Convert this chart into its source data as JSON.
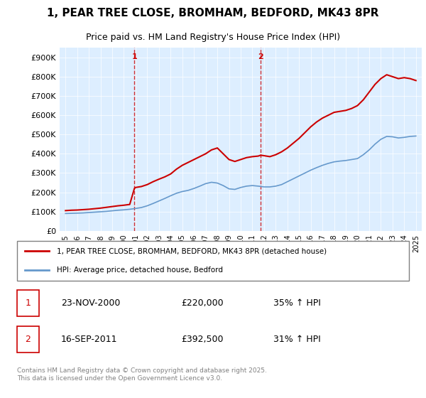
{
  "title": "1, PEAR TREE CLOSE, BROMHAM, BEDFORD, MK43 8PR",
  "subtitle": "Price paid vs. HM Land Registry's House Price Index (HPI)",
  "ylabel_ticks": [
    "£0",
    "£100K",
    "£200K",
    "£300K",
    "£400K",
    "£500K",
    "£600K",
    "£700K",
    "£800K",
    "£900K"
  ],
  "ylim": [
    0,
    950000
  ],
  "ytick_values": [
    0,
    100000,
    200000,
    300000,
    400000,
    500000,
    600000,
    700000,
    800000,
    900000
  ],
  "transaction1": {
    "date_num": 2000.9,
    "price": 220000,
    "label": "1",
    "date_str": "23-NOV-2000",
    "pct": "35% ↑ HPI"
  },
  "transaction2": {
    "date_num": 2011.71,
    "price": 392500,
    "label": "2",
    "date_str": "16-SEP-2011",
    "pct": "31% ↑ HPI"
  },
  "xlim": [
    1994.5,
    2025.5
  ],
  "xtick_years": [
    1995,
    1996,
    1997,
    1998,
    1999,
    2000,
    2001,
    2002,
    2003,
    2004,
    2005,
    2006,
    2007,
    2008,
    2009,
    2010,
    2011,
    2012,
    2013,
    2014,
    2015,
    2016,
    2017,
    2018,
    2019,
    2020,
    2021,
    2022,
    2023,
    2024,
    2025
  ],
  "property_color": "#cc0000",
  "hpi_color": "#6699cc",
  "vline_color": "#cc0000",
  "plot_bg": "#ddeeff",
  "legend_line1": "1, PEAR TREE CLOSE, BROMHAM, BEDFORD, MK43 8PR (detached house)",
  "legend_line2": "HPI: Average price, detached house, Bedford",
  "footer": "Contains HM Land Registry data © Crown copyright and database right 2025.\nThis data is licensed under the Open Government Licence v3.0.",
  "property_data": [
    [
      1995.0,
      105000
    ],
    [
      1995.5,
      107000
    ],
    [
      1996.0,
      108000
    ],
    [
      1996.5,
      110000
    ],
    [
      1997.0,
      112000
    ],
    [
      1997.5,
      115000
    ],
    [
      1998.0,
      118000
    ],
    [
      1998.5,
      122000
    ],
    [
      1999.0,
      126000
    ],
    [
      1999.5,
      130000
    ],
    [
      2000.0,
      133000
    ],
    [
      2000.5,
      137000
    ],
    [
      2000.9,
      220000
    ],
    [
      2001.0,
      225000
    ],
    [
      2001.5,
      230000
    ],
    [
      2002.0,
      240000
    ],
    [
      2002.5,
      255000
    ],
    [
      2003.0,
      268000
    ],
    [
      2003.5,
      280000
    ],
    [
      2004.0,
      295000
    ],
    [
      2004.5,
      320000
    ],
    [
      2005.0,
      340000
    ],
    [
      2005.5,
      355000
    ],
    [
      2006.0,
      370000
    ],
    [
      2006.5,
      385000
    ],
    [
      2007.0,
      400000
    ],
    [
      2007.5,
      420000
    ],
    [
      2008.0,
      430000
    ],
    [
      2008.5,
      400000
    ],
    [
      2009.0,
      370000
    ],
    [
      2009.5,
      360000
    ],
    [
      2010.0,
      370000
    ],
    [
      2010.5,
      380000
    ],
    [
      2011.0,
      385000
    ],
    [
      2011.5,
      388000
    ],
    [
      2011.71,
      392500
    ],
    [
      2012.0,
      390000
    ],
    [
      2012.5,
      385000
    ],
    [
      2013.0,
      395000
    ],
    [
      2013.5,
      410000
    ],
    [
      2014.0,
      430000
    ],
    [
      2014.5,
      455000
    ],
    [
      2015.0,
      480000
    ],
    [
      2015.5,
      510000
    ],
    [
      2016.0,
      540000
    ],
    [
      2016.5,
      565000
    ],
    [
      2017.0,
      585000
    ],
    [
      2017.5,
      600000
    ],
    [
      2018.0,
      615000
    ],
    [
      2018.5,
      620000
    ],
    [
      2019.0,
      625000
    ],
    [
      2019.5,
      635000
    ],
    [
      2020.0,
      650000
    ],
    [
      2020.5,
      680000
    ],
    [
      2021.0,
      720000
    ],
    [
      2021.5,
      760000
    ],
    [
      2022.0,
      790000
    ],
    [
      2022.5,
      810000
    ],
    [
      2023.0,
      800000
    ],
    [
      2023.5,
      790000
    ],
    [
      2024.0,
      795000
    ],
    [
      2024.5,
      790000
    ],
    [
      2025.0,
      780000
    ]
  ],
  "hpi_data": [
    [
      1995.0,
      90000
    ],
    [
      1995.5,
      91000
    ],
    [
      1996.0,
      92000
    ],
    [
      1996.5,
      93000
    ],
    [
      1997.0,
      95000
    ],
    [
      1997.5,
      97000
    ],
    [
      1998.0,
      99000
    ],
    [
      1998.5,
      101000
    ],
    [
      1999.0,
      104000
    ],
    [
      1999.5,
      107000
    ],
    [
      2000.0,
      109000
    ],
    [
      2000.5,
      112000
    ],
    [
      2001.0,
      116000
    ],
    [
      2001.5,
      121000
    ],
    [
      2002.0,
      130000
    ],
    [
      2002.5,
      142000
    ],
    [
      2003.0,
      155000
    ],
    [
      2003.5,
      168000
    ],
    [
      2004.0,
      182000
    ],
    [
      2004.5,
      195000
    ],
    [
      2005.0,
      204000
    ],
    [
      2005.5,
      210000
    ],
    [
      2006.0,
      220000
    ],
    [
      2006.5,
      232000
    ],
    [
      2007.0,
      245000
    ],
    [
      2007.5,
      252000
    ],
    [
      2008.0,
      248000
    ],
    [
      2008.5,
      235000
    ],
    [
      2009.0,
      218000
    ],
    [
      2009.5,
      215000
    ],
    [
      2010.0,
      225000
    ],
    [
      2010.5,
      232000
    ],
    [
      2011.0,
      235000
    ],
    [
      2011.5,
      232000
    ],
    [
      2012.0,
      228000
    ],
    [
      2012.5,
      228000
    ],
    [
      2013.0,
      232000
    ],
    [
      2013.5,
      240000
    ],
    [
      2014.0,
      255000
    ],
    [
      2014.5,
      270000
    ],
    [
      2015.0,
      285000
    ],
    [
      2015.5,
      300000
    ],
    [
      2016.0,
      315000
    ],
    [
      2016.5,
      328000
    ],
    [
      2017.0,
      340000
    ],
    [
      2017.5,
      350000
    ],
    [
      2018.0,
      358000
    ],
    [
      2018.5,
      362000
    ],
    [
      2019.0,
      365000
    ],
    [
      2019.5,
      370000
    ],
    [
      2020.0,
      375000
    ],
    [
      2020.5,
      395000
    ],
    [
      2021.0,
      420000
    ],
    [
      2021.5,
      450000
    ],
    [
      2022.0,
      475000
    ],
    [
      2022.5,
      490000
    ],
    [
      2023.0,
      488000
    ],
    [
      2023.5,
      482000
    ],
    [
      2024.0,
      485000
    ],
    [
      2024.5,
      490000
    ],
    [
      2025.0,
      492000
    ]
  ]
}
